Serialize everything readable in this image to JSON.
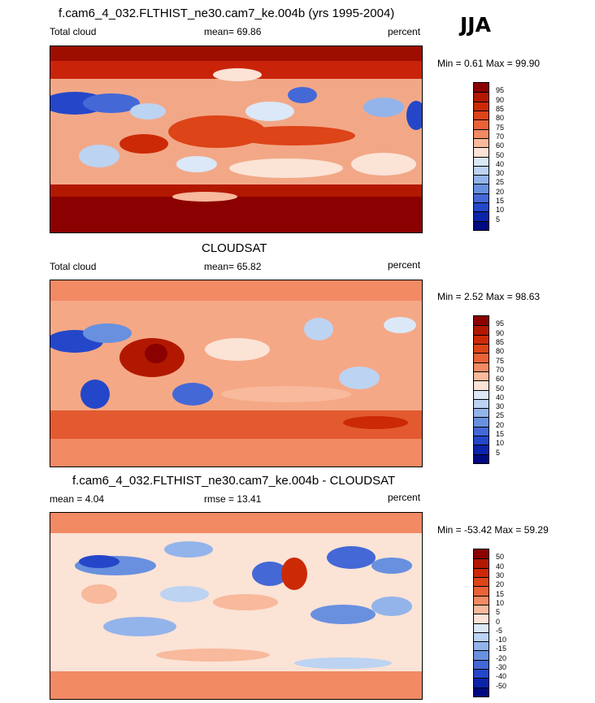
{
  "season": "JJA",
  "panels": [
    {
      "title": "f.cam6_4_032.FLTHIST_ne30.cam7_ke.004b (yrs 1995-2004)",
      "left_label": "Total cloud",
      "center_label": "mean=  69.86",
      "right_label": "percent",
      "minmax": "Min =   0.61 Max =  99.90",
      "colorbar_labels": [
        "95",
        "90",
        "85",
        "80",
        "75",
        "70",
        "60",
        "50",
        "40",
        "30",
        "25",
        "20",
        "15",
        "10",
        "5"
      ],
      "colorbar_colors": [
        "#8b0000",
        "#b21800",
        "#cc2a06",
        "#dd4418",
        "#ea6238",
        "#f28a64",
        "#f8b99c",
        "#fbe3d6",
        "#dbe8f7",
        "#bcd3f2",
        "#93b4ea",
        "#6890df",
        "#4468d6",
        "#2447c9",
        "#0b24aa",
        "#000a80"
      ]
    },
    {
      "title": "CLOUDSAT",
      "left_label": "Total cloud",
      "center_label": "mean=  65.82",
      "right_label": "percent",
      "minmax": "Min =   2.52 Max =  98.63",
      "colorbar_labels": [
        "95",
        "90",
        "85",
        "80",
        "75",
        "70",
        "60",
        "50",
        "40",
        "30",
        "25",
        "20",
        "15",
        "10",
        "5"
      ],
      "colorbar_colors": [
        "#8b0000",
        "#b21800",
        "#cc2a06",
        "#dd4418",
        "#ea6238",
        "#f28a64",
        "#f8b99c",
        "#fbe3d6",
        "#dbe8f7",
        "#bcd3f2",
        "#93b4ea",
        "#6890df",
        "#4468d6",
        "#2447c9",
        "#0b24aa",
        "#000a80"
      ]
    },
    {
      "title": "f.cam6_4_032.FLTHIST_ne30.cam7_ke.004b - CLOUDSAT",
      "left_label": "mean =   4.04",
      "center_label": "rmse =  13.41",
      "right_label": "percent",
      "minmax": "Min = -53.42 Max =  59.29",
      "colorbar_labels": [
        "50",
        "40",
        "30",
        "20",
        "15",
        "10",
        "5",
        "0",
        "-5",
        "-10",
        "-15",
        "-20",
        "-30",
        "-40",
        "-50"
      ],
      "colorbar_colors": [
        "#8b0000",
        "#b21800",
        "#cc2a06",
        "#dd4418",
        "#ea6238",
        "#f28a64",
        "#f8b99c",
        "#fbe3d6",
        "#dbe8f7",
        "#bcd3f2",
        "#93b4ea",
        "#6890df",
        "#4468d6",
        "#2447c9",
        "#0b24aa",
        "#000a80"
      ]
    }
  ]
}
